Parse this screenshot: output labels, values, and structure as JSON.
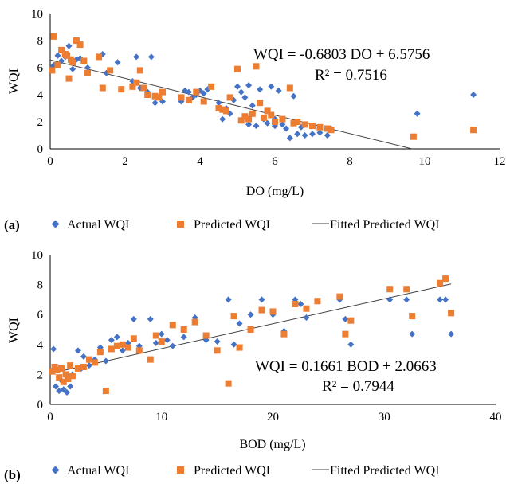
{
  "chart_data": [
    {
      "type": "scatter",
      "panel_label": "(a)",
      "xlabel": "DO (mg/L)",
      "ylabel": "WQI",
      "xlim": [
        0,
        12
      ],
      "ylim": [
        0,
        10
      ],
      "x_ticks": [
        "0",
        "2",
        "4",
        "6",
        "8",
        "10",
        "12"
      ],
      "y_ticks": [
        "0",
        "2",
        "4",
        "6",
        "8",
        "10"
      ],
      "grid": false,
      "legend_position": "bottom",
      "equation": "WQI = -0.6803 DO + 6.5756",
      "r2": "R² = 0.7516",
      "fit": {
        "slope": -0.6803,
        "intercept": 6.5756,
        "x_range": [
          0,
          9.66
        ]
      },
      "series": [
        {
          "name": "Actual WQI",
          "marker": "diamond",
          "color": "#4472c4",
          "points": [
            [
              0.05,
              6.0
            ],
            [
              0.1,
              6.2
            ],
            [
              0.2,
              6.9
            ],
            [
              0.3,
              6.5
            ],
            [
              0.4,
              6.8
            ],
            [
              0.5,
              7.6
            ],
            [
              0.6,
              5.9
            ],
            [
              0.7,
              6.6
            ],
            [
              0.8,
              6.7
            ],
            [
              0.9,
              6.5
            ],
            [
              1.0,
              6.0
            ],
            [
              1.4,
              7.0
            ],
            [
              1.5,
              5.6
            ],
            [
              1.8,
              6.4
            ],
            [
              2.2,
              5.0
            ],
            [
              2.3,
              6.8
            ],
            [
              2.4,
              4.5
            ],
            [
              2.6,
              4.2
            ],
            [
              2.7,
              6.8
            ],
            [
              2.8,
              3.4
            ],
            [
              3.0,
              3.5
            ],
            [
              3.5,
              3.5
            ],
            [
              3.6,
              4.3
            ],
            [
              3.7,
              4.2
            ],
            [
              3.8,
              3.8
            ],
            [
              3.9,
              4.0
            ],
            [
              4.0,
              4.3
            ],
            [
              4.1,
              4.1
            ],
            [
              4.2,
              4.4
            ],
            [
              4.5,
              3.4
            ],
            [
              4.6,
              2.2
            ],
            [
              4.7,
              3.0
            ],
            [
              4.8,
              2.6
            ],
            [
              4.9,
              3.6
            ],
            [
              5.0,
              4.6
            ],
            [
              5.1,
              4.2
            ],
            [
              5.2,
              3.8
            ],
            [
              5.3,
              4.7
            ],
            [
              5.3,
              1.8
            ],
            [
              5.4,
              3.2
            ],
            [
              5.5,
              1.7
            ],
            [
              5.6,
              4.4
            ],
            [
              5.7,
              2.2
            ],
            [
              5.8,
              1.9
            ],
            [
              5.9,
              4.6
            ],
            [
              6.0,
              2.2
            ],
            [
              6.0,
              1.7
            ],
            [
              6.1,
              4.3
            ],
            [
              6.2,
              1.8
            ],
            [
              6.3,
              1.5
            ],
            [
              6.4,
              0.8
            ],
            [
              6.5,
              3.9
            ],
            [
              6.6,
              1.1
            ],
            [
              6.7,
              1.6
            ],
            [
              6.8,
              1.0
            ],
            [
              7.0,
              1.1
            ],
            [
              7.2,
              1.2
            ],
            [
              7.4,
              1.0
            ],
            [
              7.5,
              1.5
            ],
            [
              9.8,
              2.6
            ],
            [
              11.3,
              4.0
            ]
          ]
        },
        {
          "name": "Predicted WQI",
          "marker": "square",
          "color": "#ed7d31",
          "points": [
            [
              0.05,
              5.8
            ],
            [
              0.1,
              8.3
            ],
            [
              0.2,
              6.2
            ],
            [
              0.3,
              7.3
            ],
            [
              0.4,
              7.0
            ],
            [
              0.45,
              6.9
            ],
            [
              0.5,
              5.2
            ],
            [
              0.55,
              6.6
            ],
            [
              0.6,
              6.4
            ],
            [
              0.7,
              8.0
            ],
            [
              0.8,
              7.7
            ],
            [
              0.9,
              6.5
            ],
            [
              1.0,
              5.6
            ],
            [
              1.3,
              6.8
            ],
            [
              1.4,
              4.5
            ],
            [
              1.6,
              5.8
            ],
            [
              1.9,
              4.4
            ],
            [
              2.2,
              4.6
            ],
            [
              2.3,
              4.9
            ],
            [
              2.4,
              5.8
            ],
            [
              2.5,
              4.5
            ],
            [
              2.6,
              4.0
            ],
            [
              2.8,
              3.9
            ],
            [
              2.9,
              3.8
            ],
            [
              3.0,
              4.2
            ],
            [
              3.5,
              3.8
            ],
            [
              3.7,
              3.6
            ],
            [
              3.9,
              4.2
            ],
            [
              4.1,
              3.5
            ],
            [
              4.3,
              4.6
            ],
            [
              4.5,
              3.0
            ],
            [
              4.6,
              2.9
            ],
            [
              4.7,
              2.8
            ],
            [
              4.8,
              3.8
            ],
            [
              5.0,
              5.9
            ],
            [
              5.1,
              2.1
            ],
            [
              5.2,
              2.4
            ],
            [
              5.3,
              2.2
            ],
            [
              5.4,
              2.6
            ],
            [
              5.5,
              6.1
            ],
            [
              5.6,
              3.4
            ],
            [
              5.7,
              2.3
            ],
            [
              5.8,
              2.8
            ],
            [
              5.9,
              2.5
            ],
            [
              6.0,
              2.0
            ],
            [
              6.2,
              2.2
            ],
            [
              6.4,
              4.5
            ],
            [
              6.5,
              1.9
            ],
            [
              6.6,
              2.0
            ],
            [
              6.8,
              1.8
            ],
            [
              7.0,
              1.7
            ],
            [
              7.2,
              1.6
            ],
            [
              7.4,
              1.5
            ],
            [
              7.5,
              1.4
            ],
            [
              9.7,
              0.9
            ],
            [
              11.3,
              1.4
            ]
          ]
        }
      ],
      "fit_series_name": "Fitted Predicted WQI"
    },
    {
      "type": "scatter",
      "panel_label": "(b)",
      "xlabel": "BOD (mg/L)",
      "ylabel": "WQI",
      "xlim": [
        0,
        40
      ],
      "ylim": [
        0,
        10
      ],
      "x_ticks": [
        "0",
        "10",
        "20",
        "30",
        "40"
      ],
      "y_ticks": [
        "0",
        "2",
        "4",
        "6",
        "8",
        "10"
      ],
      "grid": false,
      "legend_position": "bottom",
      "equation": "WQI = 0.1661 BOD + 2.0663",
      "r2": "R² = 0.7944",
      "fit": {
        "slope": 0.1661,
        "intercept": 2.0663,
        "x_range": [
          0,
          36
        ]
      },
      "series": [
        {
          "name": "Actual WQI",
          "marker": "diamond",
          "color": "#4472c4",
          "points": [
            [
              0.2,
              2.3
            ],
            [
              0.3,
              3.7
            ],
            [
              0.5,
              1.2
            ],
            [
              0.8,
              0.9
            ],
            [
              1.0,
              1.6
            ],
            [
              1.2,
              1.0
            ],
            [
              1.5,
              0.8
            ],
            [
              1.8,
              1.2
            ],
            [
              2.0,
              2.0
            ],
            [
              2.5,
              3.6
            ],
            [
              2.8,
              2.4
            ],
            [
              3.0,
              3.2
            ],
            [
              3.5,
              2.6
            ],
            [
              4.0,
              3.0
            ],
            [
              4.5,
              3.8
            ],
            [
              5.0,
              2.9
            ],
            [
              5.5,
              4.3
            ],
            [
              6.0,
              4.5
            ],
            [
              6.5,
              3.6
            ],
            [
              7.0,
              4.1
            ],
            [
              7.5,
              5.7
            ],
            [
              8.0,
              3.9
            ],
            [
              9.0,
              5.7
            ],
            [
              9.5,
              4.1
            ],
            [
              10.0,
              4.7
            ],
            [
              10.5,
              4.3
            ],
            [
              11.0,
              3.9
            ],
            [
              12.0,
              4.5
            ],
            [
              13.0,
              5.8
            ],
            [
              14.0,
              4.3
            ],
            [
              15.0,
              4.2
            ],
            [
              16.0,
              7.0
            ],
            [
              16.5,
              4.0
            ],
            [
              17.0,
              5.4
            ],
            [
              18.0,
              6.0
            ],
            [
              19.0,
              7.0
            ],
            [
              20.0,
              6.0
            ],
            [
              21.0,
              4.9
            ],
            [
              22.0,
              7.0
            ],
            [
              22.5,
              6.7
            ],
            [
              23.0,
              5.8
            ],
            [
              24.0,
              6.9
            ],
            [
              26.0,
              7.0
            ],
            [
              26.5,
              5.7
            ],
            [
              27.0,
              4.0
            ],
            [
              30.5,
              7.0
            ],
            [
              32.0,
              7.0
            ],
            [
              32.5,
              4.7
            ],
            [
              35.0,
              7.0
            ],
            [
              35.5,
              7.0
            ],
            [
              36.0,
              4.7
            ]
          ]
        },
        {
          "name": "Predicted WQI",
          "marker": "square",
          "color": "#ed7d31",
          "points": [
            [
              0.2,
              2.2
            ],
            [
              0.4,
              2.5
            ],
            [
              0.6,
              2.3
            ],
            [
              0.8,
              1.8
            ],
            [
              1.0,
              2.4
            ],
            [
              1.2,
              1.5
            ],
            [
              1.4,
              2.0
            ],
            [
              1.6,
              1.7
            ],
            [
              1.8,
              2.6
            ],
            [
              2.0,
              1.9
            ],
            [
              2.5,
              2.4
            ],
            [
              3.0,
              2.5
            ],
            [
              3.5,
              3.0
            ],
            [
              4.0,
              2.8
            ],
            [
              4.5,
              3.5
            ],
            [
              5.0,
              0.9
            ],
            [
              5.5,
              3.7
            ],
            [
              6.0,
              3.9
            ],
            [
              6.5,
              4.0
            ],
            [
              7.0,
              3.8
            ],
            [
              7.5,
              4.4
            ],
            [
              8.0,
              3.6
            ],
            [
              9.0,
              3.0
            ],
            [
              9.5,
              4.6
            ],
            [
              10.0,
              4.2
            ],
            [
              11.0,
              5.3
            ],
            [
              12.0,
              5.0
            ],
            [
              13.0,
              5.5
            ],
            [
              14.0,
              4.6
            ],
            [
              15.0,
              3.6
            ],
            [
              16.0,
              1.4
            ],
            [
              16.5,
              5.9
            ],
            [
              17.0,
              3.8
            ],
            [
              18.0,
              5.0
            ],
            [
              19.0,
              6.3
            ],
            [
              20.0,
              6.2
            ],
            [
              21.0,
              4.7
            ],
            [
              22.0,
              6.7
            ],
            [
              23.0,
              6.4
            ],
            [
              24.0,
              6.9
            ],
            [
              26.0,
              7.2
            ],
            [
              26.5,
              4.7
            ],
            [
              27.0,
              5.6
            ],
            [
              30.5,
              7.7
            ],
            [
              32.0,
              7.7
            ],
            [
              32.5,
              5.9
            ],
            [
              35.0,
              8.1
            ],
            [
              35.5,
              8.4
            ],
            [
              36.0,
              6.1
            ]
          ]
        }
      ],
      "fit_series_name": "Fitted Predicted WQI"
    }
  ]
}
